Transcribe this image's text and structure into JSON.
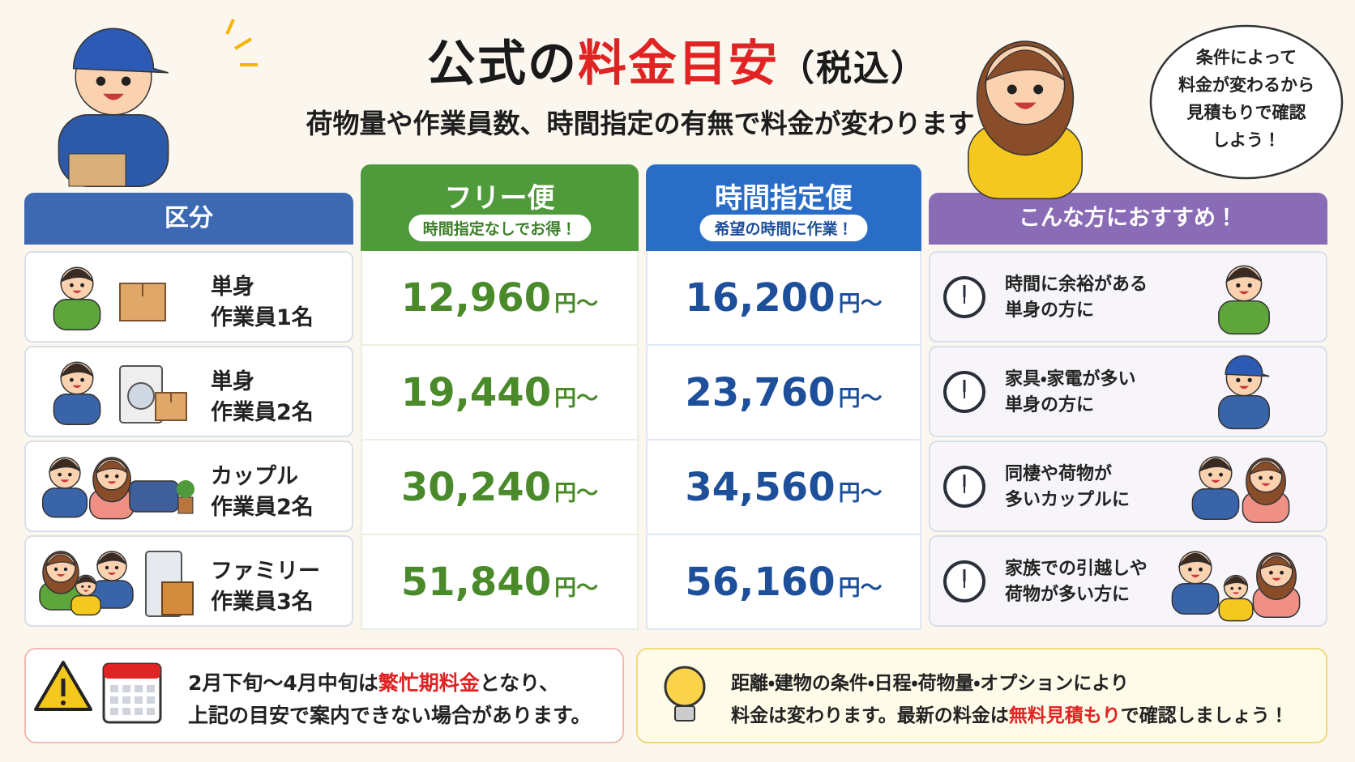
{
  "header": {
    "title": {
      "prefix": "公式の",
      "highlight": "料金目安",
      "suffix": "（税込）"
    },
    "subtitle": "荷物量や作業員数、時間指定の有無で料金が変わります"
  },
  "speech_bubble": [
    "条件によって",
    "料金が変わるから",
    "見積もりで確認",
    "しよう！"
  ],
  "table": {
    "columns": [
      {
        "title": "区分"
      },
      {
        "title": "フリー便",
        "badge": "時間指定なしでお得！"
      },
      {
        "title": "時間指定便",
        "badge": "希望の時間に作業！"
      },
      {
        "title": "こんな方におすすめ！"
      }
    ],
    "price_suffix": "円～",
    "rows": [
      {
        "category": "単身",
        "staff": "作業員1名",
        "free": "12,960",
        "timed": "16,200",
        "recommend": [
          "時間に余裕がある",
          "単身の方に"
        ]
      },
      {
        "category": "単身",
        "staff": "作業員2名",
        "free": "19,440",
        "timed": "23,760",
        "recommend": [
          "家具・家電が多い",
          "単身の方に"
        ]
      },
      {
        "category": "カップル",
        "staff": "作業員2名",
        "free": "30,240",
        "timed": "34,560",
        "recommend": [
          "同棲や荷物が",
          "多いカップルに"
        ]
      },
      {
        "category": "ファミリー",
        "staff": "作業員3名",
        "free": "51,840",
        "timed": "56,160",
        "recommend": [
          "家族での引越しや",
          "荷物が多い方に"
        ]
      }
    ]
  },
  "notes": {
    "season": {
      "before": "2月下旬～4月中旬は",
      "highlight": "繁忙期料金",
      "after": "となり、",
      "line2": "上記の目安で案内できない場合があります。"
    },
    "info": {
      "line1": "距離・建物の条件・日程・荷物量・オプションにより",
      "line2_before": "料金は変わります。最新の料金は",
      "highlight": "無料見積もり",
      "line2_after": "で確認しましょう！"
    }
  }
}
